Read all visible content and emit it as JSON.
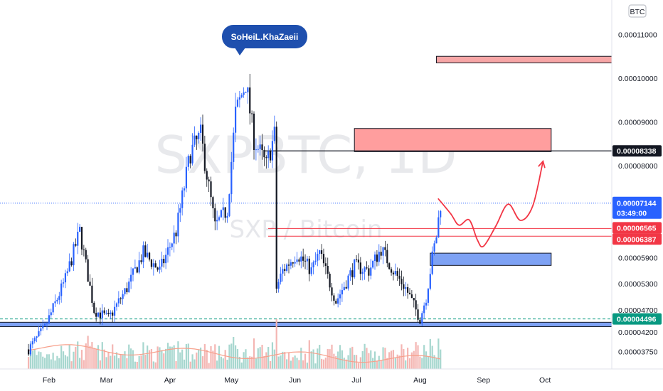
{
  "watermark": {
    "symbol": "SXPBTC, 1D",
    "description": "SXP / Bitcoin"
  },
  "author": "SoHeiL.KhaZaeii",
  "currency_label": "BTC",
  "countdown": "03:49:00",
  "chart_data": {
    "type": "candlestick",
    "xlabel": "",
    "ylabel": "",
    "y_ticks": [
      "0.00003750",
      "0.00004200",
      "0.00004700",
      "0.00005300",
      "0.00005900",
      "0.00008000",
      "0.00009000",
      "0.00010000",
      "0.00011000"
    ],
    "x_ticks": [
      "Feb",
      "Mar",
      "Apr",
      "May",
      "Jun",
      "Jul",
      "Aug",
      "Sep",
      "Oct"
    ],
    "ylim": [
      3.45e-05,
      0.000113
    ],
    "price_badges": [
      {
        "value": "0.00008338",
        "color": "#131722",
        "role": "resistance-line"
      },
      {
        "value": "0.00007144",
        "color": "#2962ff",
        "role": "last-price"
      },
      {
        "value": "0.00006565",
        "color": "#f23645",
        "role": "level"
      },
      {
        "value": "0.00006387",
        "color": "#f23645",
        "role": "level"
      },
      {
        "value": "0.00004496",
        "color": "#089981",
        "role": "support-line"
      }
    ],
    "zones": [
      {
        "label": "resistance-zone-upper",
        "color": "#f7a6a6",
        "from_date": "2021-08-10",
        "to_date": "2021-12-31",
        "low": 0.0001035,
        "high": 0.000105
      },
      {
        "label": "resistance-zone-main",
        "color": "#ff9e9e",
        "from_date": "2021-07-01",
        "to_date": "2021-10-05",
        "low": 8.32e-05,
        "high": 8.85e-05
      },
      {
        "label": "demand-zone",
        "color": "#7ea2f4",
        "from_date": "2021-08-07",
        "to_date": "2021-10-05",
        "low": 5.72e-05,
        "high": 6e-05
      },
      {
        "label": "support-zone",
        "color": "#7ea2f4",
        "from_date": "2021-01-01",
        "to_date": "2021-12-31",
        "low": 4.32e-05,
        "high": 4.42e-05
      }
    ],
    "projection": {
      "color": "#f23645",
      "points": [
        {
          "date": "2021-08-11",
          "value": 7.24e-05
        },
        {
          "date": "2021-08-17",
          "value": 6.9e-05
        },
        {
          "date": "2021-08-21",
          "value": 6.64e-05
        },
        {
          "date": "2021-08-26",
          "value": 6.76e-05
        },
        {
          "date": "2021-08-30",
          "value": 6.3e-05
        },
        {
          "date": "2021-09-02",
          "value": 6.16e-05
        },
        {
          "date": "2021-09-08",
          "value": 6.62e-05
        },
        {
          "date": "2021-09-14",
          "value": 7.12e-05
        },
        {
          "date": "2021-09-20",
          "value": 6.75e-05
        },
        {
          "date": "2021-09-26",
          "value": 7.08e-05
        },
        {
          "date": "2021-10-01",
          "value": 8.1e-05
        }
      ]
    },
    "key_points": [
      {
        "date": "2021-01-23",
        "value": 3.8e-05
      },
      {
        "date": "2021-01-31",
        "value": 4.3e-05
      },
      {
        "date": "2021-02-10",
        "value": 5.4e-05
      },
      {
        "date": "2021-02-17",
        "value": 6.5e-05
      },
      {
        "date": "2021-02-24",
        "value": 4.7e-05
      },
      {
        "date": "2021-03-03",
        "value": 4.5e-05
      },
      {
        "date": "2021-03-12",
        "value": 5.2e-05
      },
      {
        "date": "2021-03-20",
        "value": 6e-05
      },
      {
        "date": "2021-03-28",
        "value": 5.6e-05
      },
      {
        "date": "2021-04-05",
        "value": 6.5e-05
      },
      {
        "date": "2021-04-12",
        "value": 8.3e-05
      },
      {
        "date": "2021-04-17",
        "value": 8.7e-05
      },
      {
        "date": "2021-04-24",
        "value": 6.6e-05
      },
      {
        "date": "2021-04-30",
        "value": 7e-05
      },
      {
        "date": "2021-05-04",
        "value": 9.2e-05
      },
      {
        "date": "2021-05-09",
        "value": 9.9e-05
      },
      {
        "date": "2021-05-13",
        "value": 8.6e-05
      },
      {
        "date": "2021-05-19",
        "value": 8e-05
      },
      {
        "date": "2021-05-23",
        "value": 8.7e-05
      },
      {
        "date": "2021-05-24",
        "value": 5.2e-05
      },
      {
        "date": "2021-05-27",
        "value": 5.6e-05
      },
      {
        "date": "2021-06-03",
        "value": 6e-05
      },
      {
        "date": "2021-06-10",
        "value": 5.6e-05
      },
      {
        "date": "2021-06-14",
        "value": 6e-05
      },
      {
        "date": "2021-06-22",
        "value": 4.9e-05
      },
      {
        "date": "2021-07-01",
        "value": 5.7e-05
      },
      {
        "date": "2021-07-08",
        "value": 5.6e-05
      },
      {
        "date": "2021-07-14",
        "value": 6.1e-05
      },
      {
        "date": "2021-07-20",
        "value": 5.6e-05
      },
      {
        "date": "2021-07-26",
        "value": 5.2e-05
      },
      {
        "date": "2021-07-30",
        "value": 4.8e-05
      },
      {
        "date": "2021-08-02",
        "value": 4.5e-05
      },
      {
        "date": "2021-08-05",
        "value": 5e-05
      },
      {
        "date": "2021-08-08",
        "value": 5.9e-05
      },
      {
        "date": "2021-08-10",
        "value": 6.4e-05
      },
      {
        "date": "2021-08-12",
        "value": 7.14e-05
      }
    ]
  }
}
